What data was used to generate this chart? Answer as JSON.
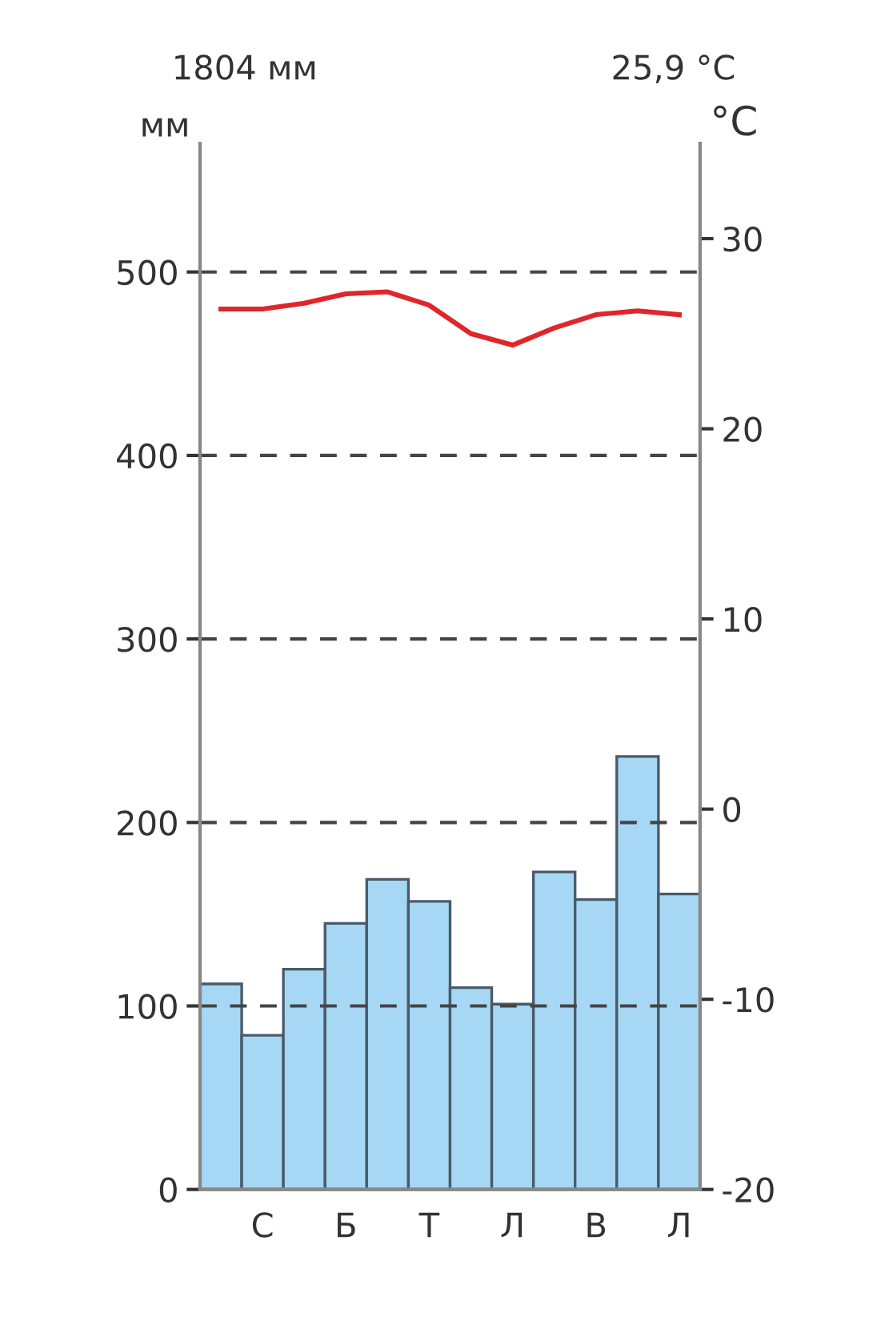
{
  "chart_data": {
    "type": "bar",
    "annotations": [
      "1804 мм",
      "25,9 °C"
    ],
    "ylabel": "мм",
    "y2label": "°C",
    "categories": [
      null,
      "С",
      null,
      "Б",
      null,
      "Т",
      null,
      "Л",
      null,
      "В",
      null,
      "Л"
    ],
    "series": [
      {
        "color": "#a6d8f5",
        "values": [
          112,
          84,
          120,
          145,
          169,
          157,
          110,
          101,
          173,
          158,
          236,
          161
        ]
      },
      {
        "type": "line",
        "axis": "y2",
        "color": "#e0262b",
        "values": [
          26.3,
          26.3,
          26.6,
          27.1,
          27.2,
          26.5,
          25.0,
          24.4,
          25.3,
          26.0,
          26.2,
          26.0
        ]
      }
    ],
    "ylim": [
      0,
      570
    ],
    "yticks": [
      0,
      100,
      200,
      300,
      400,
      500
    ],
    "y2lim": [
      -20,
      35
    ],
    "y2ticks": [
      -20,
      -10,
      0,
      10,
      20,
      30
    ],
    "grid": "y",
    "legend": false
  }
}
